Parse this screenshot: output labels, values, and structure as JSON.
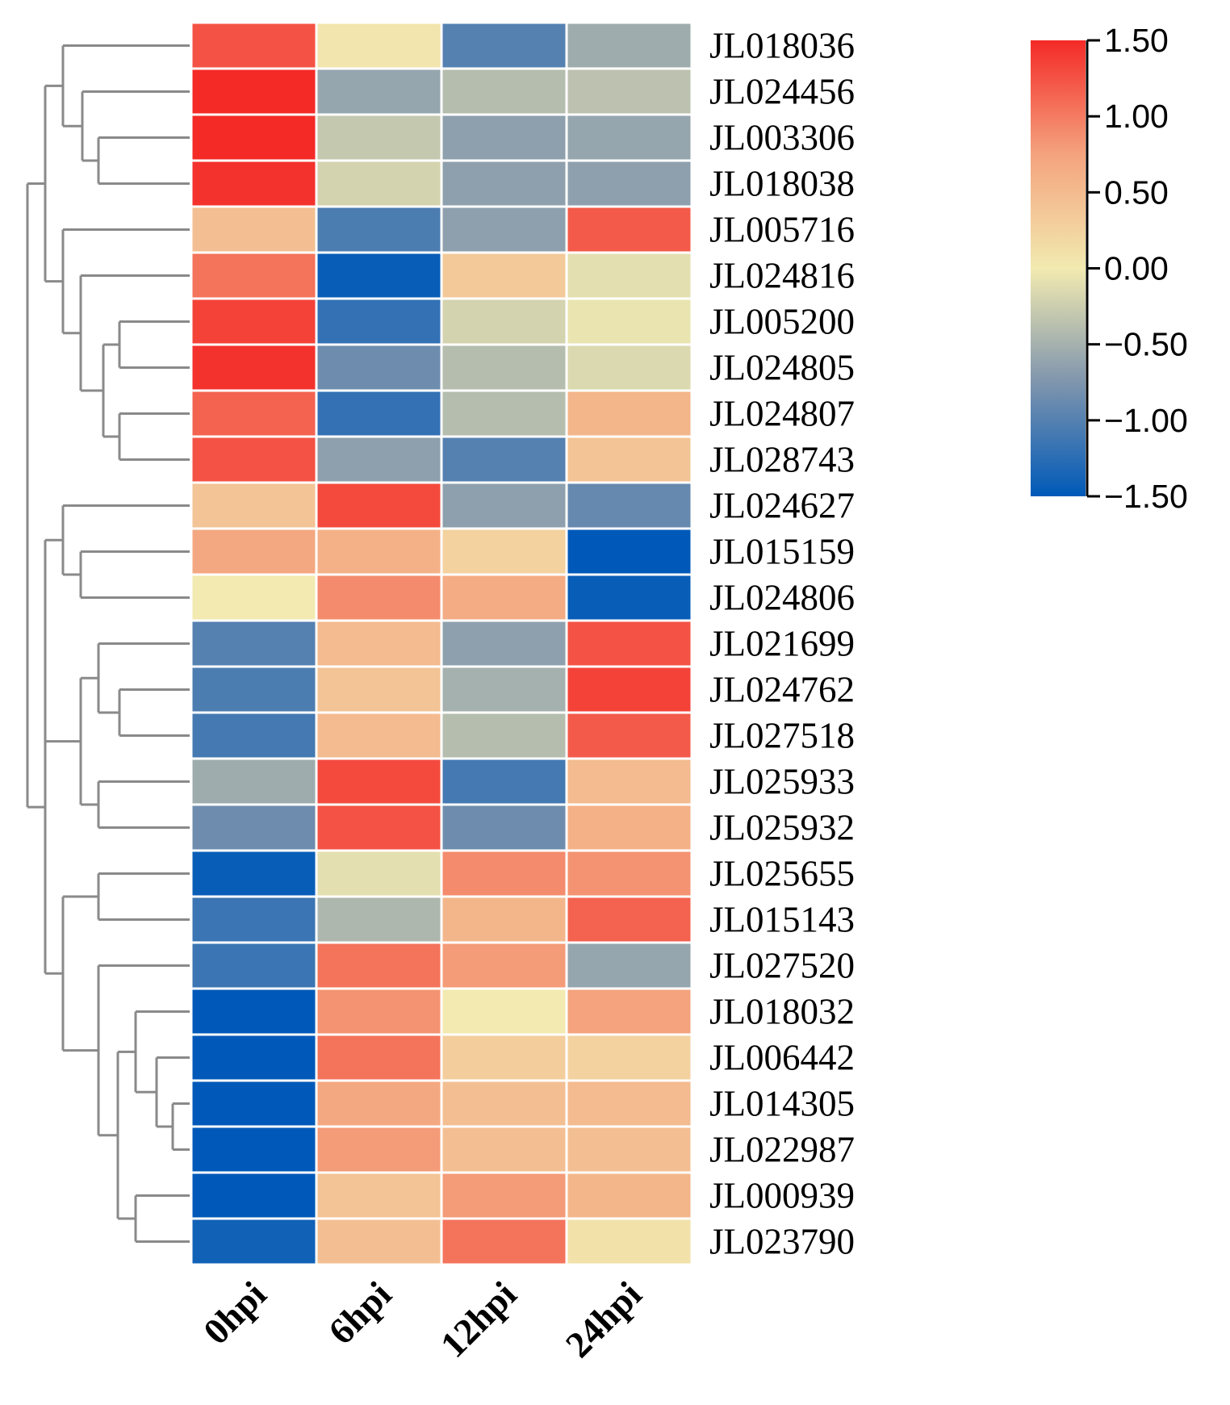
{
  "chart_data": {
    "type": "heatmap",
    "title": "",
    "columns": [
      "0hpi",
      "6hpi",
      "12hpi",
      "24hpi"
    ],
    "rows": [
      {
        "label": "JL018036",
        "values": [
          1.25,
          0.05,
          -1.0,
          -0.55
        ]
      },
      {
        "label": "JL024456",
        "values": [
          1.5,
          -0.6,
          -0.4,
          -0.35
        ]
      },
      {
        "label": "JL003306",
        "values": [
          1.5,
          -0.3,
          -0.65,
          -0.6
        ]
      },
      {
        "label": "JL018038",
        "values": [
          1.45,
          -0.2,
          -0.65,
          -0.65
        ]
      },
      {
        "label": "JL005716",
        "values": [
          0.45,
          -1.05,
          -0.65,
          1.2
        ]
      },
      {
        "label": "JL024816",
        "values": [
          1.05,
          -1.45,
          0.35,
          -0.1
        ]
      },
      {
        "label": "JL005200",
        "values": [
          1.35,
          -1.2,
          -0.2,
          -0.05
        ]
      },
      {
        "label": "JL024805",
        "values": [
          1.45,
          -0.85,
          -0.4,
          -0.15
        ]
      },
      {
        "label": "JL024807",
        "values": [
          1.15,
          -1.2,
          -0.4,
          0.55
        ]
      },
      {
        "label": "JL028743",
        "values": [
          1.25,
          -0.65,
          -1.0,
          0.4
        ]
      },
      {
        "label": "JL024627",
        "values": [
          0.4,
          1.3,
          -0.65,
          -0.9
        ]
      },
      {
        "label": "JL015159",
        "values": [
          0.7,
          0.6,
          0.25,
          -1.5
        ]
      },
      {
        "label": "JL024806",
        "values": [
          0.0,
          0.9,
          0.65,
          -1.45
        ]
      },
      {
        "label": "JL021699",
        "values": [
          -1.0,
          0.5,
          -0.65,
          1.25
        ]
      },
      {
        "label": "JL024762",
        "values": [
          -1.05,
          0.4,
          -0.5,
          1.35
        ]
      },
      {
        "label": "JL027518",
        "values": [
          -1.1,
          0.5,
          -0.4,
          1.2
        ]
      },
      {
        "label": "JL025933",
        "values": [
          -0.55,
          1.3,
          -1.1,
          0.5
        ]
      },
      {
        "label": "JL025932",
        "values": [
          -0.85,
          1.25,
          -0.85,
          0.6
        ]
      },
      {
        "label": "JL025655",
        "values": [
          -1.45,
          -0.1,
          0.9,
          0.85
        ]
      },
      {
        "label": "JL015143",
        "values": [
          -1.15,
          -0.45,
          0.55,
          1.15
        ]
      },
      {
        "label": "JL027520",
        "values": [
          -1.15,
          1.05,
          0.8,
          -0.6
        ]
      },
      {
        "label": "JL018032",
        "values": [
          -1.5,
          0.85,
          0.0,
          0.75
        ]
      },
      {
        "label": "JL006442",
        "values": [
          -1.5,
          1.05,
          0.3,
          0.25
        ]
      },
      {
        "label": "JL014305",
        "values": [
          -1.55,
          0.7,
          0.45,
          0.5
        ]
      },
      {
        "label": "JL022987",
        "values": [
          -1.55,
          0.8,
          0.45,
          0.45
        ]
      },
      {
        "label": "JL000939",
        "values": [
          -1.55,
          0.4,
          0.8,
          0.55
        ]
      },
      {
        "label": "JL023790",
        "values": [
          -1.4,
          0.45,
          1.05,
          0.1
        ]
      }
    ],
    "colorbar": {
      "min": -1.5,
      "max": 1.5,
      "ticks": [
        "1.50",
        "1.00",
        "0.50",
        "0.00",
        "−0.50",
        "−1.00",
        "−1.50"
      ],
      "colors": {
        "low": "#0059B8",
        "lowmid": "#7F95AD",
        "mid": "#F2EAB0",
        "highmid": "#F4A37E",
        "high": "#F42A27"
      }
    },
    "dendrogram": "row-clustering"
  }
}
